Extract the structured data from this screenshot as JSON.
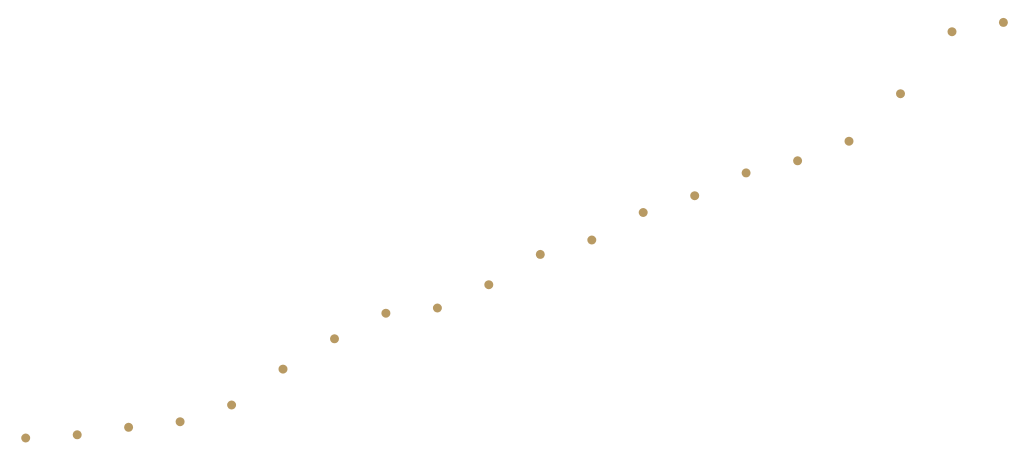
{
  "chart_data": {
    "type": "scatter",
    "title": "",
    "xlabel": "",
    "ylabel": "",
    "grid": false,
    "legend": "none",
    "point_color": "#b89a63",
    "background_color": "#ffffff",
    "xlim": [
      0.5,
      20.4
    ],
    "ylim": [
      0,
      100
    ],
    "series": [
      {
        "x": [
          1,
          2,
          3,
          4,
          5,
          6,
          7,
          8,
          9,
          10,
          11,
          12,
          13,
          14,
          15,
          16,
          17,
          18,
          19,
          20
        ],
        "y": [
          6.0,
          6.7,
          8.3,
          9.5,
          13.1,
          20.8,
          27.3,
          32.8,
          33.9,
          38.9,
          45.4,
          48.5,
          54.4,
          58.0,
          62.9,
          65.5,
          69.7,
          79.9,
          93.2,
          95.2
        ]
      }
    ]
  }
}
